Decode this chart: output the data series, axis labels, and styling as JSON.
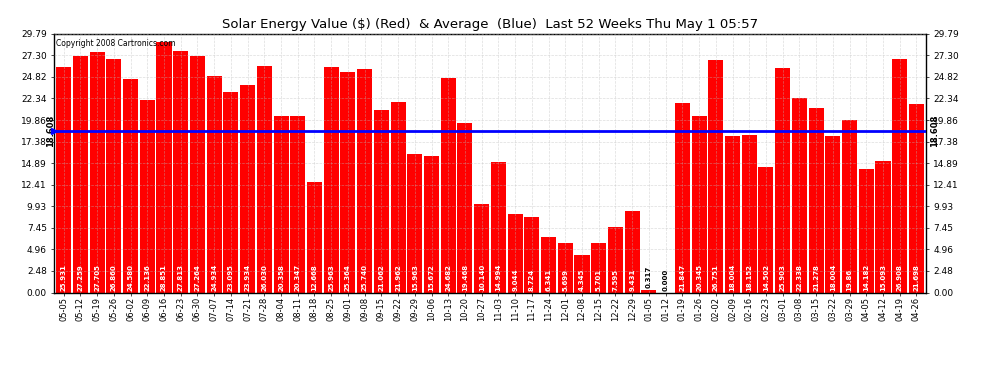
{
  "title": "Solar Energy Value ($) (Red)  & Average  (Blue)  Last 52 Weeks Thu May 1 05:57",
  "copyright": "Copyright 2008 Cartronics.com",
  "average_value": 18.608,
  "bar_color": "#FF0000",
  "average_color": "#0000FF",
  "background_color": "#FFFFFF",
  "grid_color": "#AAAAAA",
  "ylim": [
    0,
    29.79
  ],
  "yticks": [
    0.0,
    2.48,
    4.96,
    7.45,
    9.93,
    12.41,
    14.89,
    17.38,
    19.86,
    22.34,
    24.82,
    27.3,
    29.79
  ],
  "categories": [
    "05-05",
    "05-12",
    "05-19",
    "05-26",
    "06-02",
    "06-09",
    "06-16",
    "06-23",
    "06-30",
    "07-07",
    "07-14",
    "07-21",
    "07-28",
    "08-04",
    "08-11",
    "08-18",
    "08-25",
    "09-01",
    "09-08",
    "09-15",
    "09-22",
    "09-29",
    "10-06",
    "10-13",
    "10-20",
    "10-27",
    "11-03",
    "11-10",
    "11-17",
    "11-24",
    "12-01",
    "12-08",
    "12-15",
    "12-22",
    "12-29",
    "01-05",
    "01-12",
    "01-19",
    "01-26",
    "02-02",
    "02-09",
    "02-16",
    "02-23",
    "03-01",
    "03-08",
    "03-15",
    "03-22",
    "03-29",
    "04-05",
    "04-12",
    "04-19",
    "04-26"
  ],
  "values": [
    25.931,
    27.259,
    27.705,
    26.86,
    24.58,
    22.136,
    28.851,
    27.813,
    27.264,
    24.934,
    23.095,
    23.934,
    26.03,
    20.358,
    20.347,
    12.668,
    25.963,
    25.364,
    25.74,
    21.062,
    21.962,
    15.963,
    15.672,
    24.682,
    19.468,
    10.14,
    14.994,
    9.044,
    8.724,
    6.341,
    5.699,
    4.345,
    5.701,
    7.595,
    9.431,
    0.317,
    0.0,
    21.847,
    20.345,
    26.751,
    18.004,
    18.152,
    14.502,
    25.903,
    22.338,
    21.278,
    18.004,
    19.86,
    14.182,
    15.093,
    26.908,
    21.698
  ],
  "value_labels": [
    "25.931",
    "27.259",
    "27.705",
    "26.860",
    "24.580",
    "22.136",
    "28.851",
    "27.813",
    "27.264",
    "24.934",
    "23.095",
    "23.934",
    "26.030",
    "20.358",
    "20.347",
    "12.668",
    "25.963",
    "25.364",
    "25.740",
    "21.062",
    "21.962",
    "15.963",
    "15.672",
    "24.682",
    "19.468",
    "10.140",
    "14.994",
    "9.044",
    "8.724",
    "6.341",
    "5.699",
    "4.345",
    "5.701",
    "7.595",
    "9.431",
    "0.317",
    "0.000",
    "21.847",
    "20.345",
    "26.751",
    "18.004",
    "18.152",
    "14.502",
    "25.903",
    "22.338",
    "21.278",
    "18.004",
    "19.86",
    "14.182",
    "15.093",
    "26.908",
    "21.698"
  ]
}
